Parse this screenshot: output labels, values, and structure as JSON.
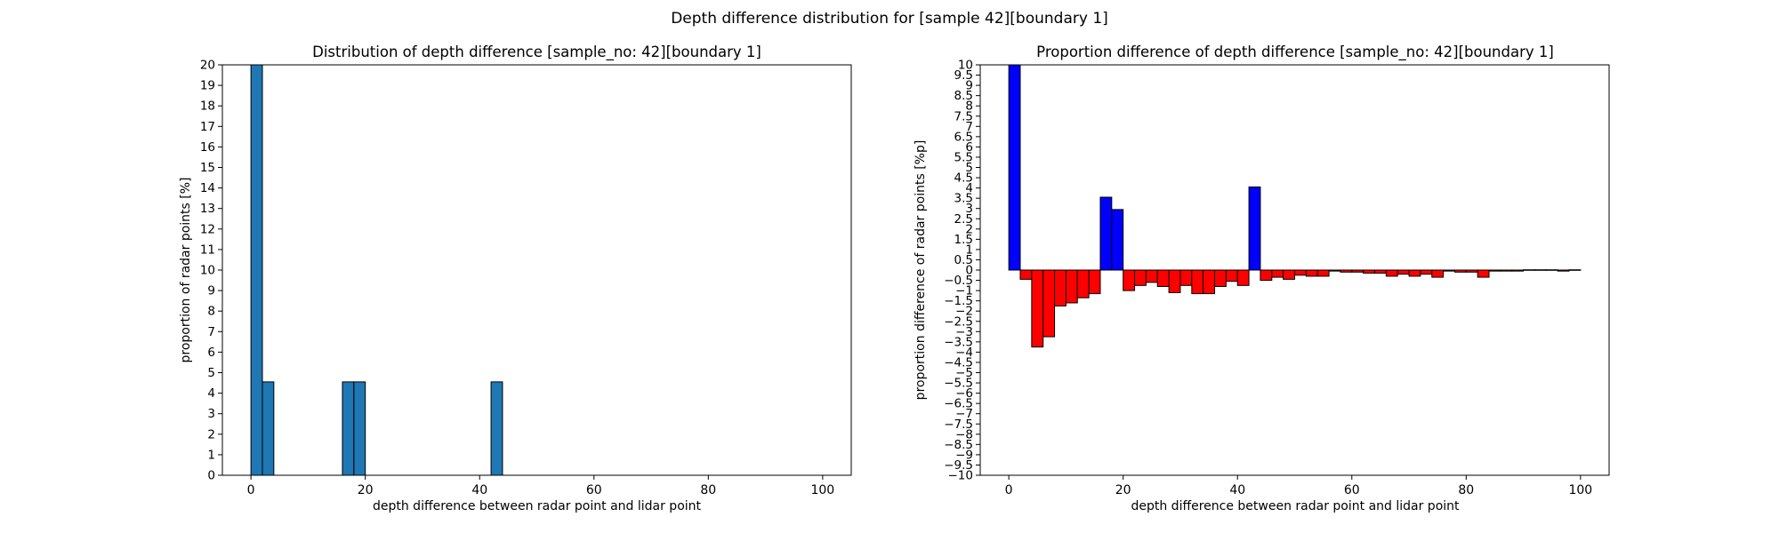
{
  "figure": {
    "suptitle": "Depth difference distribution for [sample 42][boundary 1]"
  },
  "chart_data": [
    {
      "type": "bar",
      "title": "Distribution of depth difference [sample_no: 42][boundary 1]",
      "xlabel": "depth difference between radar point and lidar point",
      "ylabel": "proportion of radar points [%]",
      "xlim": [
        -5,
        105
      ],
      "ylim": [
        0,
        20
      ],
      "xticks": [
        0,
        20,
        40,
        60,
        80,
        100
      ],
      "yticks": [
        0,
        1,
        2,
        3,
        4,
        5,
        6,
        7,
        8,
        9,
        10,
        11,
        12,
        13,
        14,
        15,
        16,
        17,
        18,
        19,
        20
      ],
      "bin_width": 2,
      "bar_color": "#1f77b4",
      "edge_color": "#000000",
      "bars": [
        {
          "x": 0,
          "value": 20.0
        },
        {
          "x": 2,
          "value": 4.55
        },
        {
          "x": 16,
          "value": 4.55
        },
        {
          "x": 18,
          "value": 4.55
        },
        {
          "x": 42,
          "value": 4.55
        }
      ],
      "grid": false
    },
    {
      "type": "bar",
      "title": "Proportion difference of depth difference [sample_no: 42][boundary 1]",
      "xlabel": "depth difference between radar point and lidar point",
      "ylabel": "proportion difference of radar points [%p]",
      "xlim": [
        -5,
        105
      ],
      "ylim": [
        -10,
        10
      ],
      "xticks": [
        0,
        20,
        40,
        60,
        80,
        100
      ],
      "yticks": [
        -10,
        -9.5,
        -9,
        -8.5,
        -8,
        -7.5,
        -7,
        -6.5,
        -6,
        -5.5,
        -5,
        -4.5,
        -4,
        -3.5,
        -3,
        -2.5,
        -2,
        -1.5,
        -1,
        -0.5,
        0,
        0.5,
        1,
        1.5,
        2,
        2.5,
        3,
        3.5,
        4,
        4.5,
        5,
        5.5,
        6,
        6.5,
        7,
        7.5,
        8,
        8.5,
        9,
        9.5,
        10
      ],
      "bin_width": 2,
      "positive_color": "#0000ff",
      "negative_color": "#ff0000",
      "edge_color": "#000000",
      "x": [
        0,
        2,
        4,
        6,
        8,
        10,
        12,
        14,
        16,
        18,
        20,
        22,
        24,
        26,
        28,
        30,
        32,
        34,
        36,
        38,
        40,
        42,
        44,
        46,
        48,
        50,
        52,
        54,
        56,
        58,
        60,
        62,
        64,
        66,
        68,
        70,
        72,
        74,
        76,
        78,
        80,
        82,
        84,
        86,
        88,
        90,
        92,
        94,
        96,
        98
      ],
      "values": [
        10.0,
        -0.45,
        -3.75,
        -3.25,
        -1.75,
        -1.6,
        -1.35,
        -1.15,
        3.55,
        2.95,
        -1.0,
        -0.75,
        -0.6,
        -0.8,
        -1.1,
        -0.75,
        -1.15,
        -1.15,
        -0.8,
        -0.55,
        -0.75,
        4.05,
        -0.5,
        -0.35,
        -0.45,
        -0.25,
        -0.3,
        -0.3,
        -0.05,
        -0.1,
        -0.1,
        -0.15,
        -0.15,
        -0.3,
        -0.2,
        -0.3,
        -0.2,
        -0.35,
        -0.05,
        -0.1,
        -0.1,
        -0.35,
        -0.05,
        -0.05,
        -0.05,
        0.0,
        0.0,
        0.0,
        -0.05,
        0.0
      ],
      "grid": false
    }
  ]
}
